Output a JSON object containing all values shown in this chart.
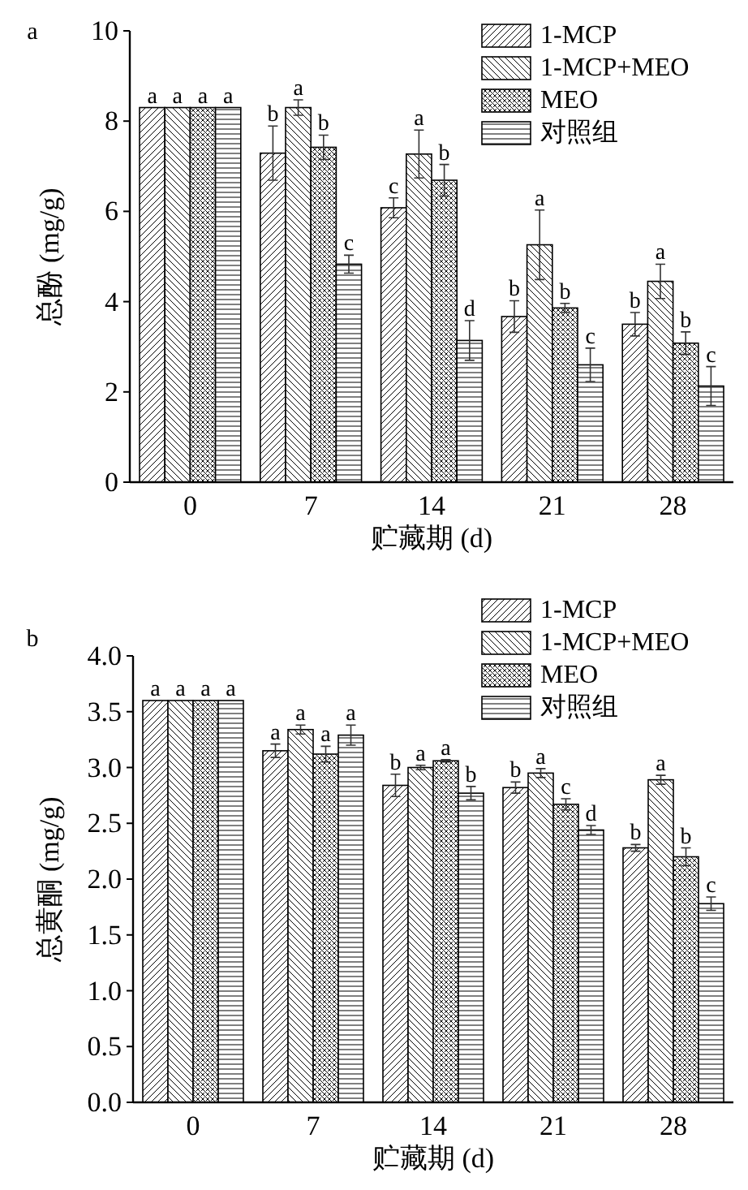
{
  "chart_data": [
    {
      "type": "bar",
      "title": "a",
      "xlabel": "贮藏期 (d)",
      "ylabel": "总酚 (mg/g)",
      "categories": [
        "0",
        "7",
        "14",
        "21",
        "28"
      ],
      "ylim": [
        0,
        10
      ],
      "yticks": [
        0,
        2,
        4,
        6,
        8,
        10
      ],
      "legend": "top right",
      "series": [
        {
          "name": "1-MCP",
          "color": "#000000",
          "values": [
            8.3,
            7.29,
            6.08,
            3.67,
            3.5
          ],
          "errors": [
            null,
            0.6,
            0.22,
            0.35,
            0.26
          ],
          "value_labels": [
            "a",
            "b",
            "c",
            "b",
            "b"
          ]
        },
        {
          "name": "1-MCP+MEO",
          "color": "#000000",
          "values": [
            8.3,
            8.3,
            7.27,
            5.26,
            4.45
          ],
          "errors": [
            null,
            0.17,
            0.53,
            0.77,
            0.38
          ],
          "value_labels": [
            "a",
            "a",
            "a",
            "a",
            "a"
          ]
        },
        {
          "name": "MEO",
          "color": "#000000",
          "values": [
            8.3,
            7.42,
            6.69,
            3.86,
            3.08
          ],
          "errors": [
            null,
            0.27,
            0.35,
            0.1,
            0.25
          ],
          "value_labels": [
            "a",
            "b",
            "b",
            "b",
            "b"
          ]
        },
        {
          "name": "对照组",
          "color": "#000000",
          "values": [
            8.3,
            4.83,
            3.14,
            2.6,
            2.13
          ],
          "errors": [
            null,
            0.2,
            0.44,
            0.37,
            0.43
          ],
          "value_labels": [
            "a",
            "c",
            "d",
            "c",
            "c"
          ]
        }
      ]
    },
    {
      "type": "bar",
      "title": "b",
      "xlabel": "贮藏期 (d)",
      "ylabel": "总黄酮 (mg/g)",
      "categories": [
        "0",
        "7",
        "14",
        "21",
        "28"
      ],
      "ylim": [
        0,
        4
      ],
      "yticks": [
        {
          "value": 0,
          "label": "0.0"
        },
        {
          "value": 0.5,
          "label": "0.5"
        },
        {
          "value": 1,
          "label": "1.0"
        },
        {
          "value": 1.5,
          "label": "1.5"
        },
        {
          "value": 2,
          "label": "2.0"
        },
        {
          "value": 2.5,
          "label": "2.5"
        },
        {
          "value": 3,
          "label": "3.0"
        },
        {
          "value": 3.5,
          "label": "3.5"
        },
        {
          "value": 4,
          "label": "4.0"
        }
      ],
      "legend": "top right",
      "series": [
        {
          "name": "1-MCP",
          "color": "#000000",
          "values": [
            3.6,
            3.15,
            2.84,
            2.82,
            2.28
          ],
          "errors": [
            null,
            0.06,
            0.1,
            0.05,
            0.03
          ],
          "value_labels": [
            "a",
            "a",
            "b",
            "b",
            "b"
          ]
        },
        {
          "name": "1-MCP+MEO",
          "color": "#000000",
          "values": [
            3.6,
            3.34,
            3.0,
            2.95,
            2.89
          ],
          "errors": [
            null,
            0.04,
            0.02,
            0.04,
            0.04
          ],
          "value_labels": [
            "a",
            "a",
            "a",
            "a",
            "a"
          ]
        },
        {
          "name": "MEO",
          "color": "#000000",
          "values": [
            3.6,
            3.12,
            3.06,
            2.67,
            2.2
          ],
          "errors": [
            null,
            0.07,
            0.01,
            0.05,
            0.08
          ],
          "value_labels": [
            "a",
            "a",
            "a",
            "c",
            "b"
          ]
        },
        {
          "name": "对照组",
          "color": "#000000",
          "values": [
            3.6,
            3.29,
            2.77,
            2.44,
            1.78
          ],
          "errors": [
            null,
            0.09,
            0.06,
            0.04,
            0.06
          ],
          "value_labels": [
            "a",
            "a",
            "b",
            "d",
            "c"
          ]
        }
      ]
    }
  ]
}
